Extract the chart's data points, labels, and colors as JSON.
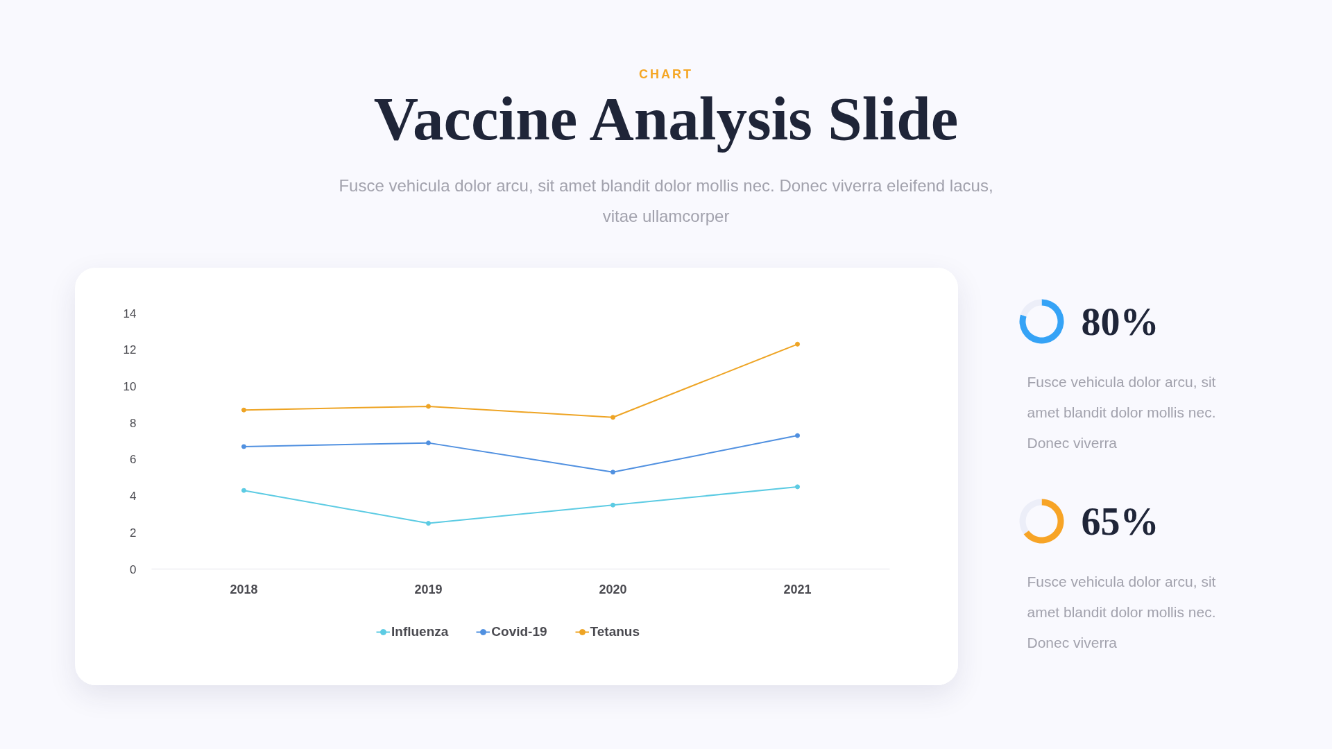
{
  "chart_data": [
    {
      "type": "line",
      "title": "Vaccine Analysis Slide",
      "subtitle": "Fusce vehicula dolor arcu, sit amet blandit dolor mollis nec. Donec viverra eleifend lacus, vitae ullamcorper",
      "annotations": [
        "CHART"
      ],
      "categories": [
        "2018",
        "2019",
        "2020",
        "2021"
      ],
      "series": [
        {
          "name": "Influenza",
          "color": "#5ccbe3",
          "values": [
            4.3,
            2.5,
            3.5,
            4.5
          ]
        },
        {
          "name": "Covid-19",
          "color": "#5090e0",
          "values": [
            6.7,
            6.9,
            5.3,
            7.3
          ]
        },
        {
          "name": "Tetanus",
          "color": "#eea424",
          "values": [
            8.7,
            8.9,
            8.3,
            12.3
          ]
        }
      ],
      "ylim": [
        0,
        14
      ],
      "yticks": [
        0,
        2,
        4,
        6,
        8,
        10,
        12,
        14
      ],
      "legend": "bottom",
      "marker": "circle",
      "line_style": "solid"
    },
    {
      "type": "donut",
      "categories": [
        null,
        null
      ],
      "values": [
        80,
        20
      ],
      "colors": [
        "#35a3f6",
        "#eceef8"
      ],
      "value_labels": [
        "80%",
        null
      ],
      "annotations": [
        "Fusce vehicula dolor arcu, sit amet blandit dolor mollis nec. Donec viverra"
      ]
    },
    {
      "type": "donut",
      "categories": [
        null,
        null
      ],
      "values": [
        65,
        35
      ],
      "colors": [
        "#f7a426",
        "#eceef8"
      ],
      "value_labels": [
        "65%",
        null
      ],
      "annotations": [
        "Fusce vehicula dolor arcu, sit amet blandit dolor mollis nec. Donec viverra"
      ]
    }
  ]
}
